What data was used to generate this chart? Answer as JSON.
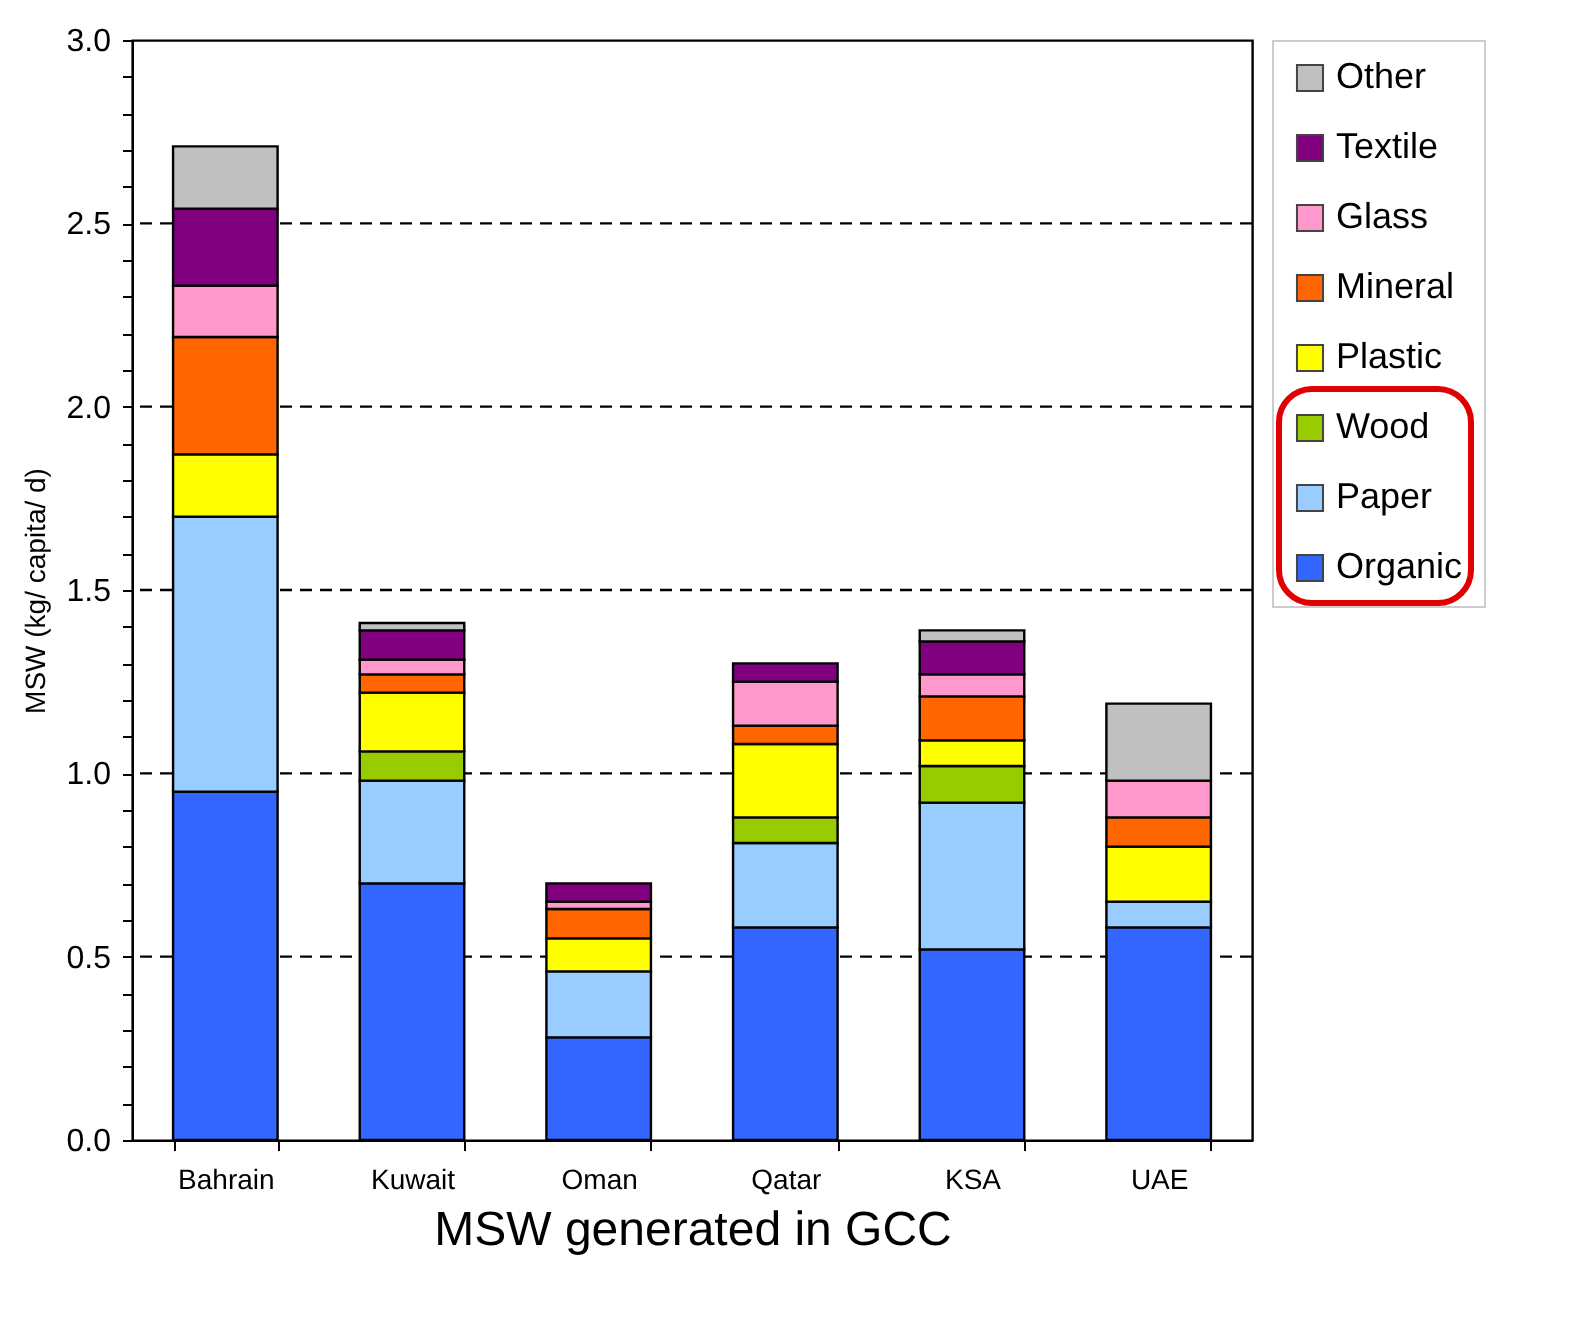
{
  "chart_data": {
    "type": "bar",
    "stacked": true,
    "xlabel": "MSW generated in GCC",
    "ylabel": "MSW (kg/ capita/ d)",
    "categories": [
      "Bahrain",
      "Kuwait",
      "Oman",
      "Qatar",
      "KSA",
      "UAE"
    ],
    "series": [
      {
        "name": "Organic",
        "color": "#3366ff",
        "values": [
          0.95,
          0.7,
          0.28,
          0.58,
          0.52,
          0.58
        ]
      },
      {
        "name": "Paper",
        "color": "#99ccff",
        "values": [
          0.75,
          0.28,
          0.18,
          0.23,
          0.4,
          0.07
        ]
      },
      {
        "name": "Wood",
        "color": "#99cc00",
        "values": [
          null,
          0.08,
          null,
          0.07,
          0.1,
          null
        ]
      },
      {
        "name": "Plastic",
        "color": "#ffff00",
        "values": [
          0.17,
          0.16,
          0.09,
          0.2,
          0.07,
          0.15
        ]
      },
      {
        "name": "Mineral",
        "color": "#ff6600",
        "values": [
          0.32,
          0.05,
          0.08,
          0.05,
          0.12,
          0.08
        ]
      },
      {
        "name": "Glass",
        "color": "#ff99cc",
        "values": [
          0.14,
          0.04,
          0.02,
          0.12,
          0.06,
          0.1
        ]
      },
      {
        "name": "Textile",
        "color": "#800080",
        "values": [
          0.21,
          0.08,
          0.05,
          0.05,
          0.09,
          null
        ]
      },
      {
        "name": "Other",
        "color": "#c0c0c0",
        "values": [
          0.17,
          0.02,
          null,
          null,
          0.03,
          0.21
        ]
      }
    ],
    "ylim": [
      0,
      3
    ],
    "yticks": [
      {
        "value": 0,
        "label": "0.0"
      },
      {
        "value": 0.1,
        "label": null
      },
      {
        "value": 0.2,
        "label": null
      },
      {
        "value": 0.3,
        "label": null
      },
      {
        "value": 0.4,
        "label": null
      },
      {
        "value": 0.5,
        "label": "0.5"
      },
      {
        "value": 0.6,
        "label": null
      },
      {
        "value": 0.7,
        "label": null
      },
      {
        "value": 0.8,
        "label": null
      },
      {
        "value": 0.9,
        "label": null
      },
      {
        "value": 1,
        "label": "1.0"
      },
      {
        "value": 1.1,
        "label": null
      },
      {
        "value": 1.2,
        "label": null
      },
      {
        "value": 1.3,
        "label": null
      },
      {
        "value": 1.4,
        "label": null
      },
      {
        "value": 1.5,
        "label": "1.5"
      },
      {
        "value": 1.6,
        "label": null
      },
      {
        "value": 1.7,
        "label": null
      },
      {
        "value": 1.8,
        "label": null
      },
      {
        "value": 1.9,
        "label": null
      },
      {
        "value": 2,
        "label": "2.0"
      },
      {
        "value": 2.1,
        "label": null
      },
      {
        "value": 2.2,
        "label": null
      },
      {
        "value": 2.3,
        "label": null
      },
      {
        "value": 2.4,
        "label": null
      },
      {
        "value": 2.5,
        "label": "2.5"
      },
      {
        "value": 2.6,
        "label": null
      },
      {
        "value": 2.7,
        "label": null
      },
      {
        "value": 2.8,
        "label": null
      },
      {
        "value": 2.9,
        "label": null
      },
      {
        "value": 3,
        "label": "3.0"
      }
    ],
    "grid": "y",
    "legend": "right"
  }
}
